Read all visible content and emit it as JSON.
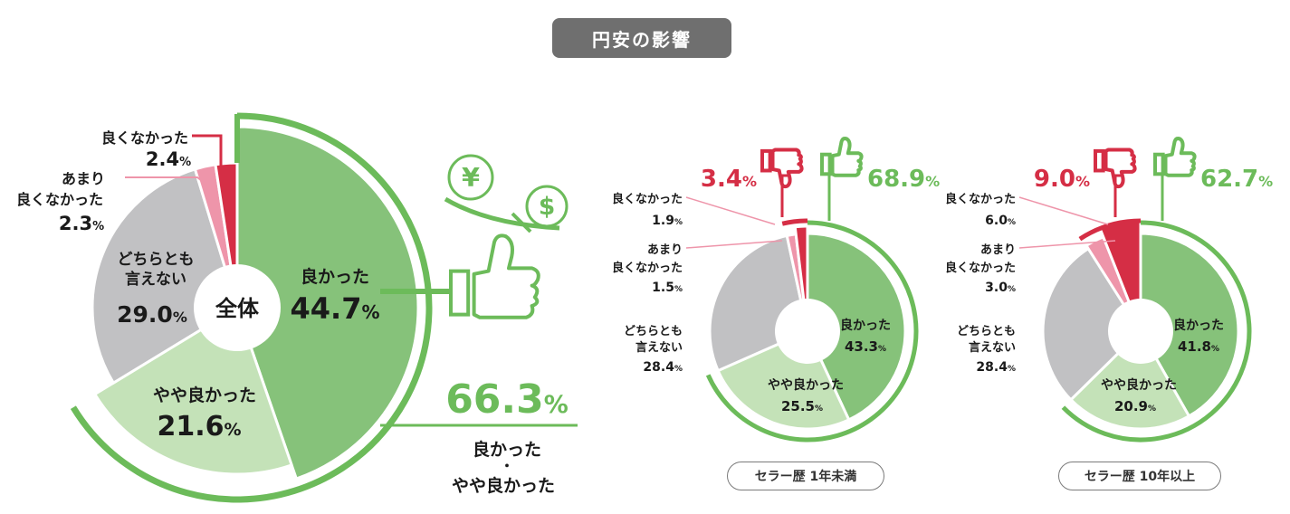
{
  "title": "円安の影響",
  "colors": {
    "good": "#86c27a",
    "somewhat_good": "#c4e2b8",
    "neutral": "#c1c1c3",
    "somewhat_bad": "#ee95aa",
    "bad": "#d52e45",
    "green_accent": "#6cbb5a",
    "red_accent": "#d52e45"
  },
  "overall": {
    "center_label": "全体",
    "positive_total": "66.3%",
    "positive_caption_line1": "良かった",
    "positive_caption_dot": "・",
    "positive_caption_line2": "やや良かった"
  },
  "chart_data": [
    {
      "type": "pie",
      "name": "全体",
      "categories": [
        "良かった",
        "やや良かった",
        "どちらとも言えない",
        "あまり良くなかった",
        "良くなかった"
      ],
      "values": [
        44.7,
        21.6,
        29.0,
        2.3,
        2.4
      ],
      "labels": [
        "44.7%",
        "21.6%",
        "29.0%",
        "2.3%",
        "2.4%"
      ],
      "positive_total": 66.3,
      "negative_total": null
    },
    {
      "type": "pie",
      "name": "セラー歴 1年未満",
      "categories": [
        "良かった",
        "やや良かった",
        "どちらとも言えない",
        "あまり良くなかった",
        "良くなかった"
      ],
      "values": [
        43.3,
        25.5,
        28.4,
        1.5,
        1.9
      ],
      "labels": [
        "43.3%",
        "25.5%",
        "28.4%",
        "1.5%",
        "1.9%"
      ],
      "positive_total": 68.9,
      "negative_total": 3.4,
      "positive_label": "68.9%",
      "negative_label": "3.4%"
    },
    {
      "type": "pie",
      "name": "セラー歴 10年以上",
      "categories": [
        "良かった",
        "やや良かった",
        "どちらとも言えない",
        "あまり良くなかった",
        "良くなかった"
      ],
      "values": [
        41.8,
        20.9,
        28.4,
        3.0,
        6.0
      ],
      "labels": [
        "41.8%",
        "20.9%",
        "28.4%",
        "3.0%",
        "6.0%"
      ],
      "positive_total": 62.7,
      "negative_total": 9.0,
      "positive_label": "62.7%",
      "negative_label": "9.0%"
    }
  ],
  "segment_labels": {
    "good": "良かった",
    "somewhat_good": "やや良かった",
    "neutral_line1": "どちらとも",
    "neutral_line2": "言えない",
    "somewhat_bad_line1": "あまり",
    "somewhat_bad_line2": "良くなかった",
    "bad": "良くなかった"
  },
  "pills": [
    "セラー歴 1年未満",
    "セラー歴 10年以上"
  ],
  "icons": [
    "yen-coin-icon",
    "dollar-coin-icon",
    "thumbs-up-icon",
    "thumbs-down-icon"
  ]
}
